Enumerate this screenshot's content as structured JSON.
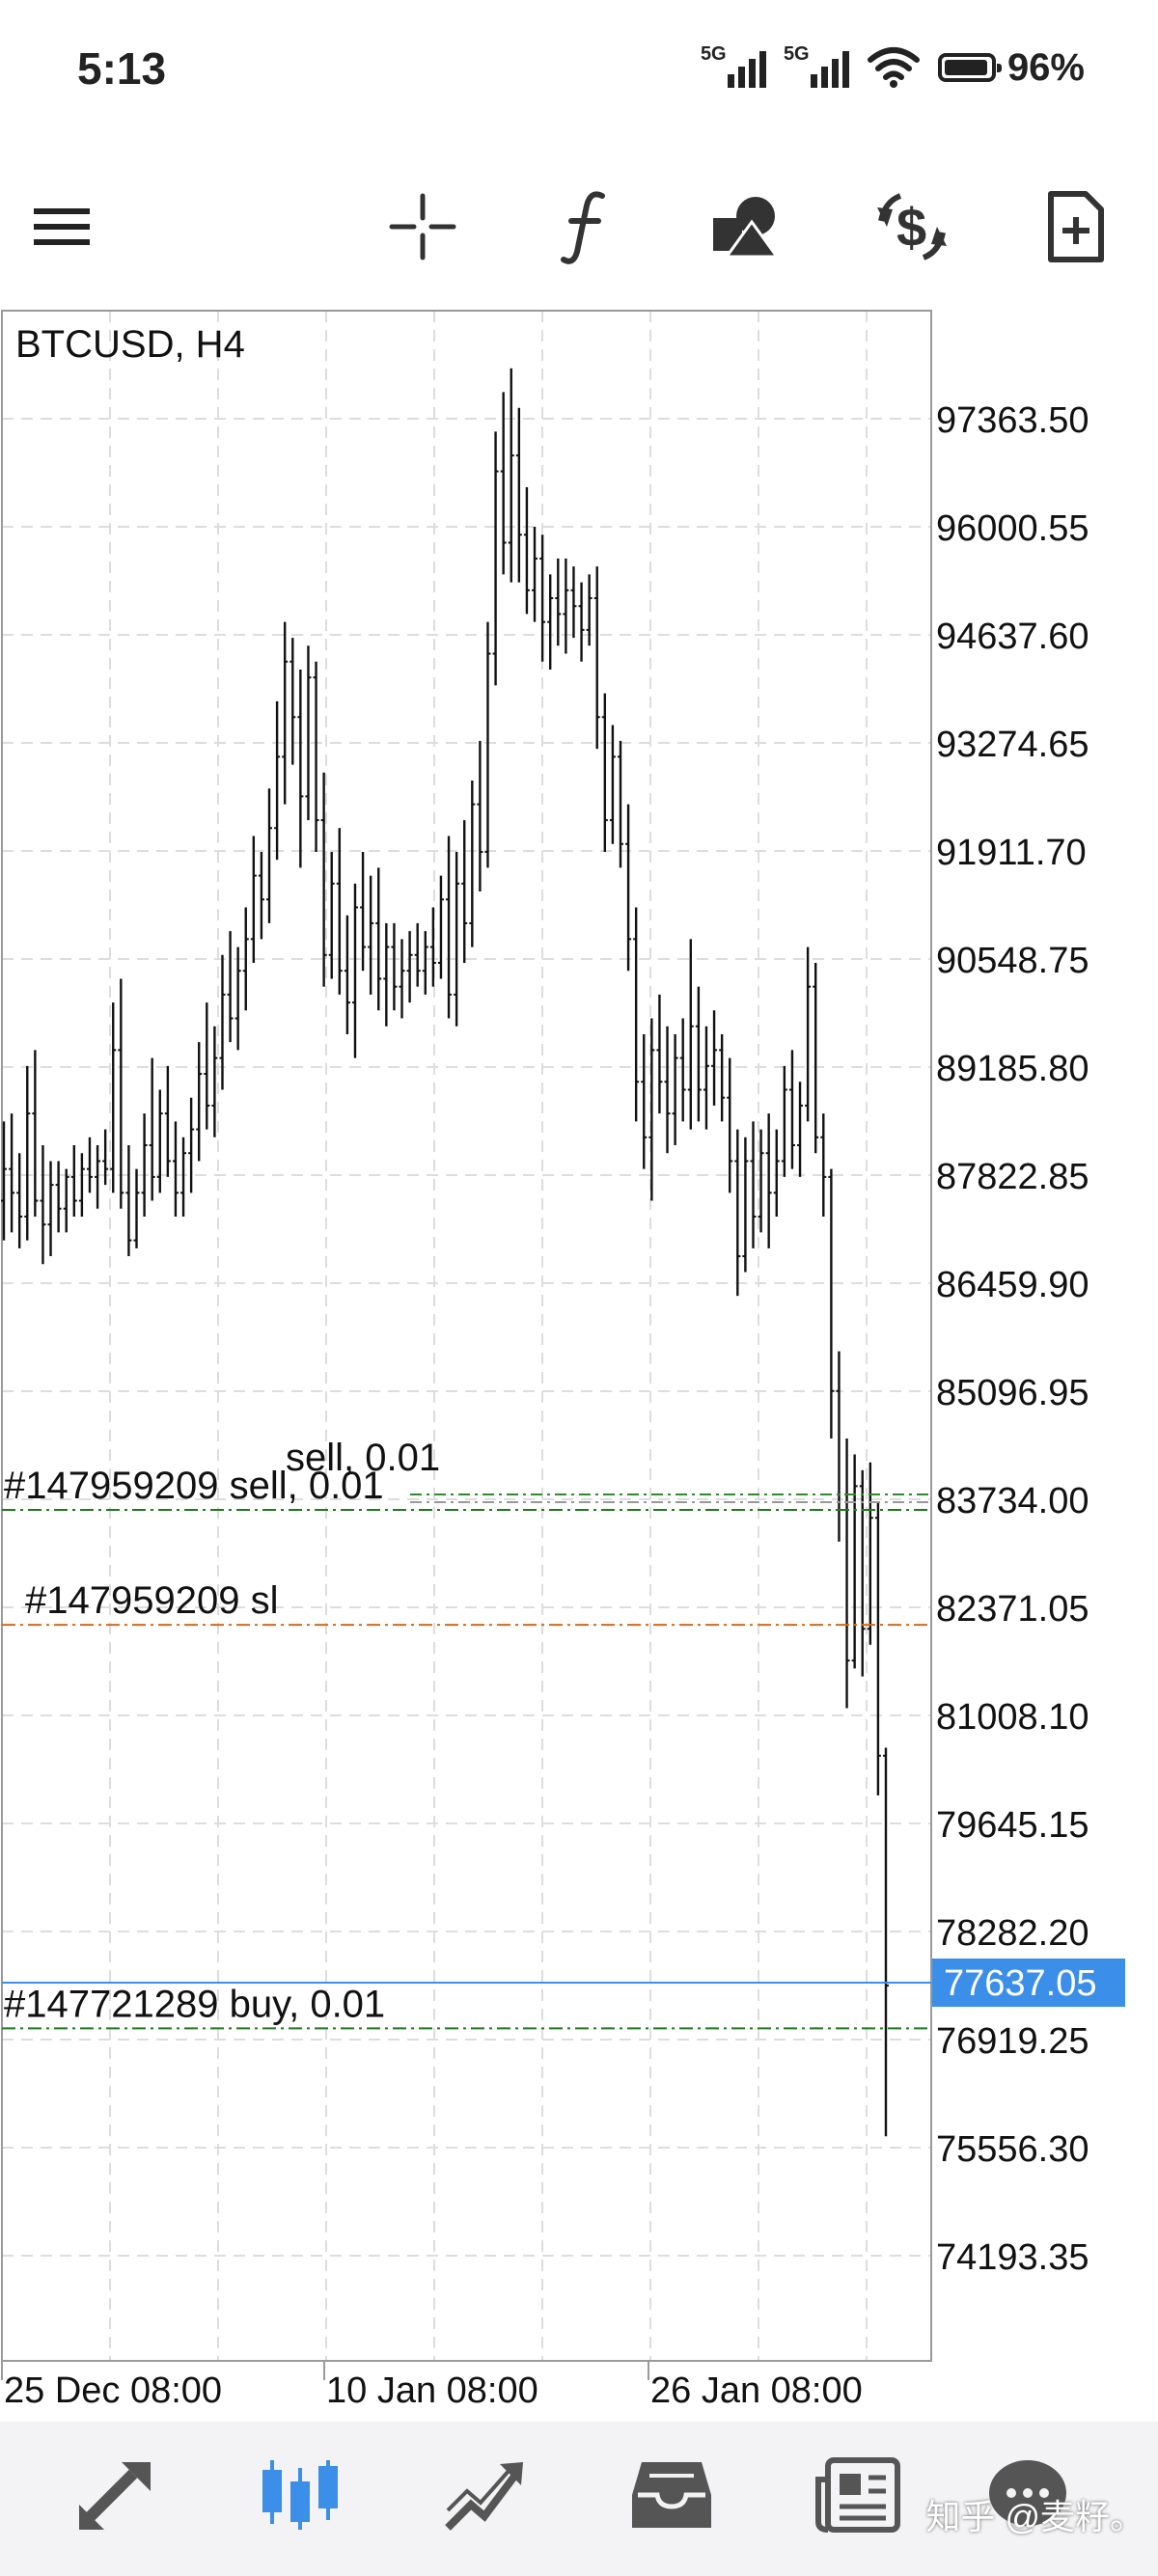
{
  "status_bar": {
    "time": "5:13",
    "signal1_label": "5G",
    "signal2_label": "5G",
    "battery_percent": "96%",
    "icons": [
      "signal-icon",
      "signal-icon",
      "wifi-icon",
      "battery-icon"
    ]
  },
  "toolbar": {
    "items": [
      {
        "name": "menu",
        "icon": "hamburger-menu-icon"
      },
      {
        "name": "crosshair",
        "icon": "crosshair-icon"
      },
      {
        "name": "indicators",
        "icon": "function-icon"
      },
      {
        "name": "objects",
        "icon": "shapes-icon"
      },
      {
        "name": "trade",
        "icon": "dollar-exchange-icon"
      },
      {
        "name": "new-order",
        "icon": "new-document-icon"
      }
    ]
  },
  "chart": {
    "symbol_label": "BTCUSD, H4",
    "price_labels": [
      "97363.50",
      "96000.55",
      "94637.60",
      "93274.65",
      "91911.70",
      "90548.75",
      "89185.80",
      "87822.85",
      "86459.90",
      "85096.95",
      "83734.00",
      "82371.05",
      "81008.10",
      "79645.15",
      "78282.20",
      "76919.25",
      "75556.30",
      "74193.35"
    ],
    "time_labels": [
      "25 Dec 08:00",
      "10 Jan 08:00",
      "26 Jan 08:00"
    ],
    "current_price": "77637.05",
    "order_lines": [
      {
        "label": "#147959209 sell, 0.01",
        "price": 83600,
        "color": "#1f7a1f",
        "kind": "sell"
      },
      {
        "label": "#147959209 sl",
        "price": 82150,
        "color": "#d2691e",
        "kind": "sl"
      },
      {
        "label": "#147721289 buy, 0.01",
        "price": 77060,
        "color": "#1f7a1f",
        "kind": "buy"
      }
    ],
    "ghost_label": "sell, 0.01",
    "colors": {
      "bars": "#111111",
      "current_price": "#3b8fe8",
      "grid": "#d8d8d8"
    }
  },
  "chart_data": {
    "type": "ohlc",
    "title": "BTCUSD, H4",
    "y_ticks": [
      97363.5,
      96000.55,
      94637.6,
      93274.65,
      91911.7,
      90548.75,
      89185.8,
      87822.85,
      86459.9,
      85096.95,
      83734.0,
      82371.05,
      81008.1,
      79645.15,
      78282.2,
      76919.25,
      75556.3,
      74193.35
    ],
    "x_ticks": [
      "25 Dec 08:00",
      "10 Jan 08:00",
      "26 Jan 08:00"
    ],
    "current_price": 77637.05,
    "bars": [
      [
        87500,
        88500,
        87000,
        87900
      ],
      [
        87900,
        88600,
        87100,
        87600
      ],
      [
        87600,
        88100,
        86900,
        87300
      ],
      [
        87300,
        89200,
        87000,
        88600
      ],
      [
        88600,
        89400,
        87300,
        87500
      ],
      [
        87500,
        88200,
        86700,
        87200
      ],
      [
        87200,
        88000,
        86800,
        87700
      ],
      [
        87700,
        88000,
        87100,
        87400
      ],
      [
        87400,
        87900,
        87100,
        87800
      ],
      [
        87800,
        88200,
        87300,
        87500
      ],
      [
        87500,
        88100,
        87300,
        87900
      ],
      [
        87900,
        88300,
        87600,
        87800
      ],
      [
        87800,
        88200,
        87400,
        88000
      ],
      [
        88000,
        88400,
        87700,
        87900
      ],
      [
        87900,
        90000,
        87600,
        89400
      ],
      [
        89400,
        90300,
        87400,
        87600
      ],
      [
        87600,
        88200,
        86800,
        87000
      ],
      [
        87000,
        87900,
        86900,
        87600
      ],
      [
        87600,
        88600,
        87300,
        88200
      ],
      [
        88200,
        89300,
        87500,
        87800
      ],
      [
        87800,
        88900,
        87600,
        88600
      ],
      [
        88600,
        89200,
        87800,
        88000
      ],
      [
        88000,
        88500,
        87300,
        87600
      ],
      [
        87600,
        88300,
        87300,
        88100
      ],
      [
        88100,
        88800,
        87600,
        88400
      ],
      [
        88400,
        89500,
        88000,
        89100
      ],
      [
        89100,
        90000,
        88400,
        88700
      ],
      [
        88700,
        89700,
        88300,
        89300
      ],
      [
        89300,
        90600,
        88900,
        90100
      ],
      [
        90100,
        90900,
        89500,
        89800
      ],
      [
        89800,
        90700,
        89400,
        90400
      ],
      [
        90400,
        91200,
        89900,
        90800
      ],
      [
        90800,
        92100,
        90500,
        91600
      ],
      [
        91600,
        91900,
        90800,
        91300
      ],
      [
        91300,
        92700,
        91000,
        92200
      ],
      [
        92200,
        93800,
        91800,
        93100
      ],
      [
        93100,
        94800,
        92500,
        94300
      ],
      [
        94300,
        94600,
        93000,
        93600
      ],
      [
        93600,
        94200,
        91700,
        92600
      ],
      [
        92600,
        94500,
        92300,
        94100
      ],
      [
        94100,
        94300,
        91900,
        92300
      ],
      [
        92300,
        92900,
        90200,
        90600
      ],
      [
        90600,
        91900,
        90300,
        91500
      ],
      [
        91500,
        92200,
        90100,
        90400
      ],
      [
        90400,
        91100,
        89600,
        90000
      ],
      [
        90000,
        91500,
        89300,
        91200
      ],
      [
        91200,
        91900,
        90400,
        90700
      ],
      [
        90700,
        91600,
        90100,
        91000
      ],
      [
        91000,
        91700,
        89900,
        90300
      ],
      [
        90300,
        91000,
        89700,
        90700
      ],
      [
        90700,
        91000,
        89900,
        90200
      ],
      [
        90200,
        90800,
        89800,
        90400
      ],
      [
        90400,
        90900,
        90000,
        90600
      ],
      [
        90600,
        91000,
        90200,
        90400
      ],
      [
        90400,
        90900,
        90100,
        90700
      ],
      [
        90700,
        91200,
        90200,
        90500
      ],
      [
        90500,
        91600,
        90300,
        91300
      ],
      [
        91300,
        92100,
        89800,
        90100
      ],
      [
        90100,
        91900,
        89700,
        91500
      ],
      [
        91500,
        92300,
        90500,
        91000
      ],
      [
        91000,
        92800,
        90700,
        92500
      ],
      [
        92500,
        93300,
        91400,
        91900
      ],
      [
        91900,
        94800,
        91700,
        94400
      ],
      [
        94400,
        97200,
        94000,
        96700
      ],
      [
        96700,
        97700,
        95400,
        95800
      ],
      [
        95800,
        98000,
        95300,
        96900
      ],
      [
        96900,
        97500,
        95300,
        95900
      ],
      [
        95900,
        96500,
        94900,
        95200
      ],
      [
        95200,
        96000,
        94800,
        95600
      ],
      [
        95600,
        95900,
        94300,
        94800
      ],
      [
        94800,
        95400,
        94200,
        95100
      ],
      [
        95100,
        95600,
        94500,
        94900
      ],
      [
        94900,
        95600,
        94400,
        95200
      ],
      [
        95200,
        95500,
        94600,
        95000
      ],
      [
        95000,
        95300,
        94300,
        94700
      ],
      [
        94700,
        95400,
        94500,
        95100
      ],
      [
        95100,
        95500,
        93200,
        93600
      ],
      [
        93600,
        93900,
        91900,
        92300
      ],
      [
        92300,
        93500,
        92000,
        93100
      ],
      [
        93100,
        93300,
        91700,
        92000
      ],
      [
        92000,
        92500,
        90400,
        90800
      ],
      [
        90800,
        91200,
        88500,
        89000
      ],
      [
        89000,
        89600,
        87900,
        88300
      ],
      [
        88300,
        89800,
        87500,
        89400
      ],
      [
        89400,
        90100,
        88600,
        89000
      ],
      [
        89000,
        89700,
        88100,
        88600
      ],
      [
        88600,
        89600,
        88200,
        89300
      ],
      [
        89300,
        89800,
        88500,
        88900
      ],
      [
        88900,
        90800,
        88400,
        89700
      ],
      [
        89700,
        90200,
        88500,
        88900
      ],
      [
        88900,
        89700,
        88400,
        89200
      ],
      [
        89200,
        89900,
        88700,
        89400
      ],
      [
        89400,
        89600,
        88500,
        88800
      ],
      [
        88800,
        89300,
        87600,
        88000
      ],
      [
        88000,
        88400,
        86300,
        86800
      ],
      [
        86800,
        88300,
        86600,
        88000
      ],
      [
        88000,
        88500,
        86900,
        87300
      ],
      [
        87300,
        88400,
        87100,
        88100
      ],
      [
        88100,
        88600,
        86900,
        87600
      ],
      [
        87600,
        88400,
        87300,
        88000
      ],
      [
        88000,
        89200,
        87800,
        88900
      ],
      [
        88900,
        89400,
        87900,
        88200
      ],
      [
        88200,
        89000,
        87800,
        88700
      ],
      [
        88700,
        90700,
        88500,
        90200
      ],
      [
        90200,
        90500,
        88100,
        88300
      ],
      [
        88300,
        88600,
        87300,
        87800
      ],
      [
        87800,
        87900,
        84500,
        85100
      ],
      [
        85100,
        85600,
        83200,
        83600
      ],
      [
        83600,
        84500,
        81100,
        81700
      ],
      [
        81700,
        84300,
        81600,
        83900
      ],
      [
        83900,
        84100,
        81500,
        82100
      ],
      [
        82100,
        84200,
        81900,
        83500
      ],
      [
        83500,
        83700,
        80000,
        80500
      ],
      [
        80500,
        80600,
        75700,
        77600
      ]
    ]
  },
  "bottom_nav": {
    "items": [
      {
        "name": "quotes",
        "icon": "quotes-arrows-icon",
        "active": false
      },
      {
        "name": "chart",
        "icon": "candlestick-chart-icon",
        "active": true
      },
      {
        "name": "trade",
        "icon": "trade-chart-icon",
        "active": false
      },
      {
        "name": "history",
        "icon": "inbox-tray-icon",
        "active": false
      },
      {
        "name": "news",
        "icon": "newspaper-icon",
        "active": false
      },
      {
        "name": "messages",
        "icon": "chat-icon",
        "active": false
      }
    ],
    "watermark": "知乎 @麦籽。"
  }
}
